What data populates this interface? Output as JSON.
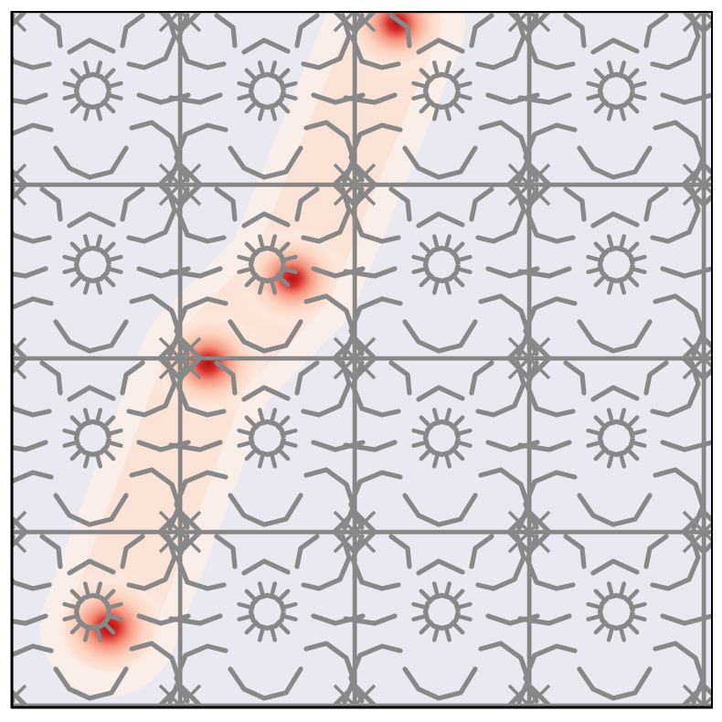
{
  "figure": {
    "panel_color": "#e9e9f2",
    "frame_color": "#000000",
    "framework_color": "#888888",
    "framework_edge_color": "#5f5f5f",
    "heat_colors": [
      "#fdeee6",
      "#fcc8ad",
      "#f47a5f",
      "#d11d1d",
      "#b00b0b"
    ],
    "unit_cells_x": 4,
    "unit_cells_y": 4,
    "density_peaks": [
      {
        "id": "peak-1",
        "cell": [
          0,
          0
        ],
        "site": "ring",
        "intensity": 1.0
      },
      {
        "id": "peak-2",
        "cell": [
          1,
          1
        ],
        "site": "junction",
        "intensity": 0.95
      },
      {
        "id": "peak-3",
        "cell": [
          1,
          1
        ],
        "site": "ring-upper",
        "intensity": 0.9
      },
      {
        "id": "peak-4",
        "cell": [
          2,
          2
        ],
        "site": "junction",
        "intensity": 0.92
      }
    ],
    "icons": {
      "ring_site": "ring-motif-icon",
      "junction_site": "cross-junction-icon"
    }
  }
}
